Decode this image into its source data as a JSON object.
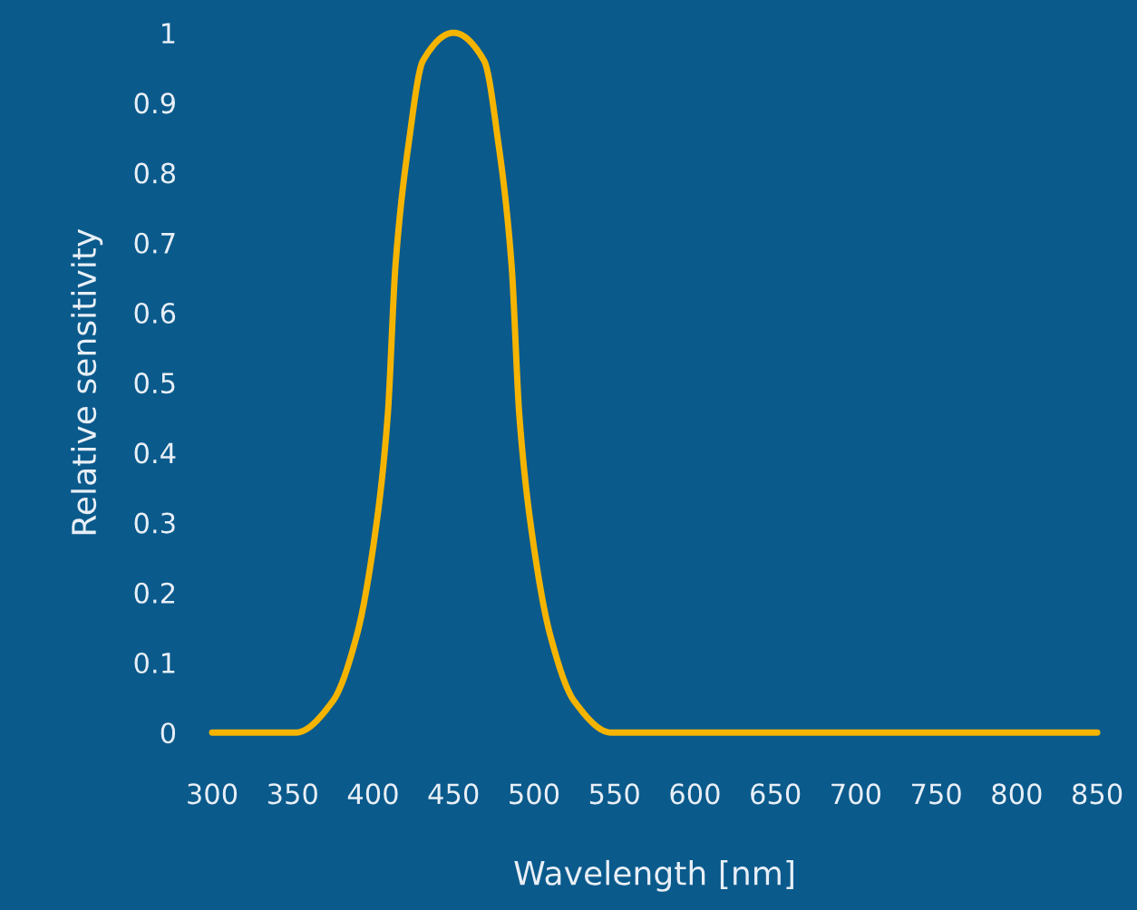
{
  "chart_data": {
    "type": "line",
    "xlabel": "Wavelength [nm]",
    "ylabel": "Relative sensitivity",
    "series": [
      {
        "color": "#f5b400",
        "x": [
          300,
          352,
          375,
          390,
          401,
          409,
          414,
          422,
          431,
          450,
          469,
          478,
          486,
          491,
          499,
          510,
          525,
          548,
          850
        ],
        "values": [
          0,
          0,
          0.045,
          0.14,
          0.28,
          0.45,
          0.67,
          0.84,
          0.96,
          1,
          0.96,
          0.84,
          0.67,
          0.45,
          0.28,
          0.14,
          0.045,
          0,
          0
        ]
      }
    ],
    "xlim": [
      300,
      850
    ],
    "xticks": [
      300,
      350,
      400,
      450,
      500,
      550,
      600,
      650,
      700,
      750,
      800,
      850
    ],
    "ylim": [
      0,
      1
    ],
    "yticks": [
      0,
      0.1,
      0.2,
      0.3,
      0.4,
      0.5,
      0.6,
      0.7,
      0.8,
      0.9,
      1
    ],
    "grid": false,
    "legend": false,
    "marker": "none",
    "line_style": "solid"
  }
}
